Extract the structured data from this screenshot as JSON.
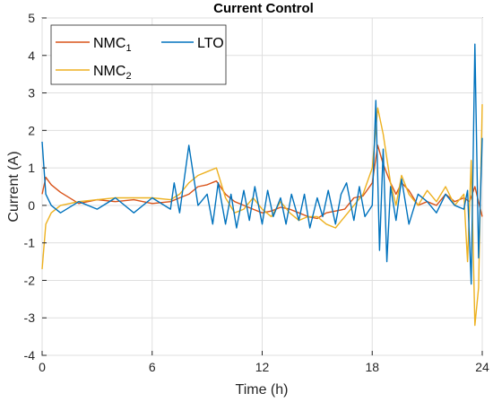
{
  "chart_data": {
    "type": "line",
    "title": "Current Control",
    "xlabel": "Time (h)",
    "ylabel": "Current (A)",
    "xlim": [
      0,
      24
    ],
    "ylim": [
      -4,
      5
    ],
    "xticks": [
      0,
      6,
      12,
      18,
      24
    ],
    "yticks": [
      -4,
      -3,
      -2,
      -1,
      0,
      1,
      2,
      3,
      4,
      5
    ],
    "grid": true,
    "legend_position": "top-left",
    "series": [
      {
        "name": "NMC",
        "subscript": "1",
        "color": "#D95319",
        "x": [
          0,
          0.2,
          0.5,
          1,
          2,
          3,
          4,
          5,
          6,
          7,
          7.5,
          8,
          8.5,
          9,
          9.5,
          10,
          10.5,
          11,
          11.5,
          12,
          12.5,
          13,
          13.5,
          14,
          14.5,
          15,
          15.5,
          16,
          16.5,
          17,
          17.5,
          18,
          18.3,
          18.6,
          19,
          19.3,
          19.6,
          20,
          20.5,
          21,
          21.5,
          22,
          22.5,
          23,
          23.3,
          23.6,
          24
        ],
        "y": [
          0.3,
          0.75,
          0.55,
          0.35,
          0.05,
          0.15,
          0.1,
          0.15,
          0.05,
          0.1,
          0.2,
          0.3,
          0.5,
          0.55,
          0.65,
          0.3,
          0.1,
          0.0,
          -0.1,
          -0.2,
          -0.15,
          -0.05,
          -0.1,
          -0.2,
          -0.3,
          -0.35,
          -0.2,
          -0.15,
          -0.1,
          0.2,
          0.25,
          0.6,
          1.6,
          1.1,
          0.6,
          0.3,
          0.6,
          0.4,
          0.0,
          0.1,
          0.0,
          0.3,
          0.1,
          0.2,
          0.1,
          0.5,
          -0.3
        ]
      },
      {
        "name": "NMC",
        "subscript": "2",
        "color": "#EDB120",
        "x": [
          0,
          0.2,
          0.5,
          1,
          2,
          3,
          4,
          5,
          6,
          7,
          7.5,
          8,
          8.5,
          9,
          9.5,
          10,
          10.5,
          11,
          11.5,
          12,
          12.5,
          13,
          13.5,
          14,
          14.5,
          15,
          15.5,
          16,
          16.5,
          17,
          17.5,
          18,
          18.3,
          18.6,
          19,
          19.3,
          19.6,
          20,
          20.5,
          21,
          21.5,
          22,
          22.5,
          23,
          23.2,
          23.4,
          23.6,
          23.8,
          24
        ],
        "y": [
          -1.7,
          -0.5,
          -0.2,
          0.0,
          0.1,
          0.15,
          0.2,
          0.2,
          0.2,
          0.15,
          0.3,
          0.6,
          0.8,
          0.9,
          1.0,
          0.2,
          -0.2,
          -0.1,
          0.2,
          -0.1,
          -0.3,
          0.1,
          -0.2,
          -0.4,
          -0.3,
          -0.3,
          -0.5,
          -0.6,
          -0.3,
          0.0,
          0.3,
          1.0,
          2.6,
          1.9,
          0.6,
          0.0,
          0.8,
          0.3,
          0.0,
          0.4,
          0.1,
          0.5,
          0.0,
          0.3,
          -1.5,
          1.2,
          -3.2,
          -2.2,
          2.7
        ]
      },
      {
        "name": "LTO",
        "subscript": "",
        "color": "#0072BD",
        "x": [
          0,
          0.2,
          0.5,
          1,
          2,
          3,
          4,
          5,
          6,
          7,
          7.2,
          7.5,
          8,
          8.5,
          9,
          9.3,
          9.6,
          10,
          10.3,
          10.6,
          11,
          11.3,
          11.6,
          12,
          12.3,
          12.6,
          13,
          13.3,
          13.6,
          14,
          14.3,
          14.6,
          15,
          15.3,
          15.6,
          16,
          16.3,
          16.6,
          17,
          17.3,
          17.6,
          18,
          18.2,
          18.4,
          18.6,
          18.8,
          19,
          19.3,
          19.6,
          20,
          20.5,
          21,
          21.5,
          22,
          22.5,
          23,
          23.2,
          23.4,
          23.6,
          23.8,
          24
        ],
        "y": [
          1.7,
          0.3,
          0.0,
          -0.2,
          0.1,
          -0.1,
          0.2,
          -0.2,
          0.2,
          -0.1,
          0.6,
          -0.2,
          1.6,
          0.0,
          0.3,
          -0.5,
          0.6,
          -0.5,
          0.3,
          -0.6,
          0.4,
          -0.4,
          0.5,
          -0.5,
          0.4,
          -0.3,
          0.2,
          -0.5,
          0.3,
          -0.4,
          0.3,
          -0.6,
          0.2,
          -0.3,
          0.4,
          -0.5,
          0.3,
          0.6,
          -0.4,
          0.5,
          -0.3,
          0.0,
          2.8,
          -1.2,
          1.5,
          -1.5,
          0.5,
          -0.4,
          0.7,
          -0.5,
          0.3,
          0.1,
          -0.2,
          0.3,
          0.0,
          -0.1,
          0.4,
          -2.1,
          4.3,
          -1.4,
          1.8
        ]
      }
    ]
  }
}
